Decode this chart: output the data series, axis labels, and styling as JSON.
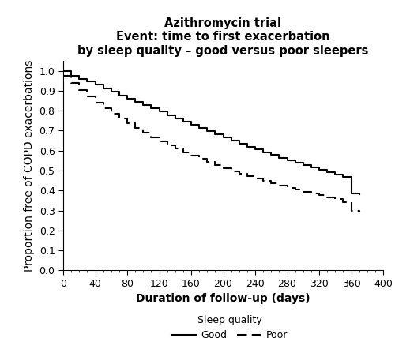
{
  "title": "Azithromycin trial\nEvent: time to first exacerbation\nby sleep quality – good versus poor sleepers",
  "xlabel": "Duration of follow-up (days)",
  "ylabel": "Proportion free of COPD exacerbations",
  "xlim": [
    0,
    400
  ],
  "ylim": [
    0.0,
    1.05
  ],
  "xticks": [
    0,
    40,
    80,
    120,
    160,
    200,
    240,
    280,
    320,
    360,
    400
  ],
  "yticks": [
    0.0,
    0.1,
    0.2,
    0.3,
    0.4,
    0.5,
    0.6,
    0.7,
    0.8,
    0.9,
    1.0
  ],
  "good_x": [
    0,
    10,
    20,
    30,
    40,
    50,
    60,
    70,
    80,
    90,
    100,
    110,
    120,
    130,
    140,
    150,
    160,
    170,
    180,
    190,
    200,
    210,
    220,
    230,
    240,
    250,
    260,
    270,
    280,
    290,
    300,
    310,
    320,
    330,
    340,
    350,
    360,
    370
  ],
  "good_y": [
    1.0,
    0.975,
    0.96,
    0.948,
    0.93,
    0.912,
    0.895,
    0.878,
    0.862,
    0.845,
    0.828,
    0.812,
    0.796,
    0.778,
    0.762,
    0.746,
    0.73,
    0.714,
    0.698,
    0.682,
    0.666,
    0.65,
    0.635,
    0.62,
    0.606,
    0.592,
    0.578,
    0.564,
    0.552,
    0.54,
    0.528,
    0.516,
    0.505,
    0.493,
    0.481,
    0.469,
    0.385,
    0.38
  ],
  "poor_x": [
    0,
    10,
    20,
    30,
    40,
    50,
    60,
    70,
    80,
    90,
    100,
    110,
    120,
    130,
    140,
    150,
    160,
    170,
    180,
    190,
    200,
    210,
    220,
    230,
    240,
    250,
    260,
    270,
    280,
    290,
    300,
    310,
    320,
    330,
    340,
    350,
    360,
    370
  ],
  "poor_y": [
    0.975,
    0.94,
    0.905,
    0.872,
    0.84,
    0.812,
    0.785,
    0.76,
    0.736,
    0.712,
    0.69,
    0.668,
    0.648,
    0.628,
    0.61,
    0.592,
    0.574,
    0.558,
    0.542,
    0.527,
    0.512,
    0.498,
    0.485,
    0.472,
    0.459,
    0.447,
    0.436,
    0.425,
    0.414,
    0.404,
    0.394,
    0.385,
    0.376,
    0.367,
    0.358,
    0.34,
    0.3,
    0.29
  ],
  "good_color": "#000000",
  "poor_color": "#000000",
  "legend_label_prefix": "Sleep quality",
  "legend_good": "Good",
  "legend_poor": "Poor",
  "title_fontsize": 10.5,
  "axis_label_fontsize": 10,
  "tick_fontsize": 9,
  "legend_fontsize": 9,
  "linewidth": 1.5
}
